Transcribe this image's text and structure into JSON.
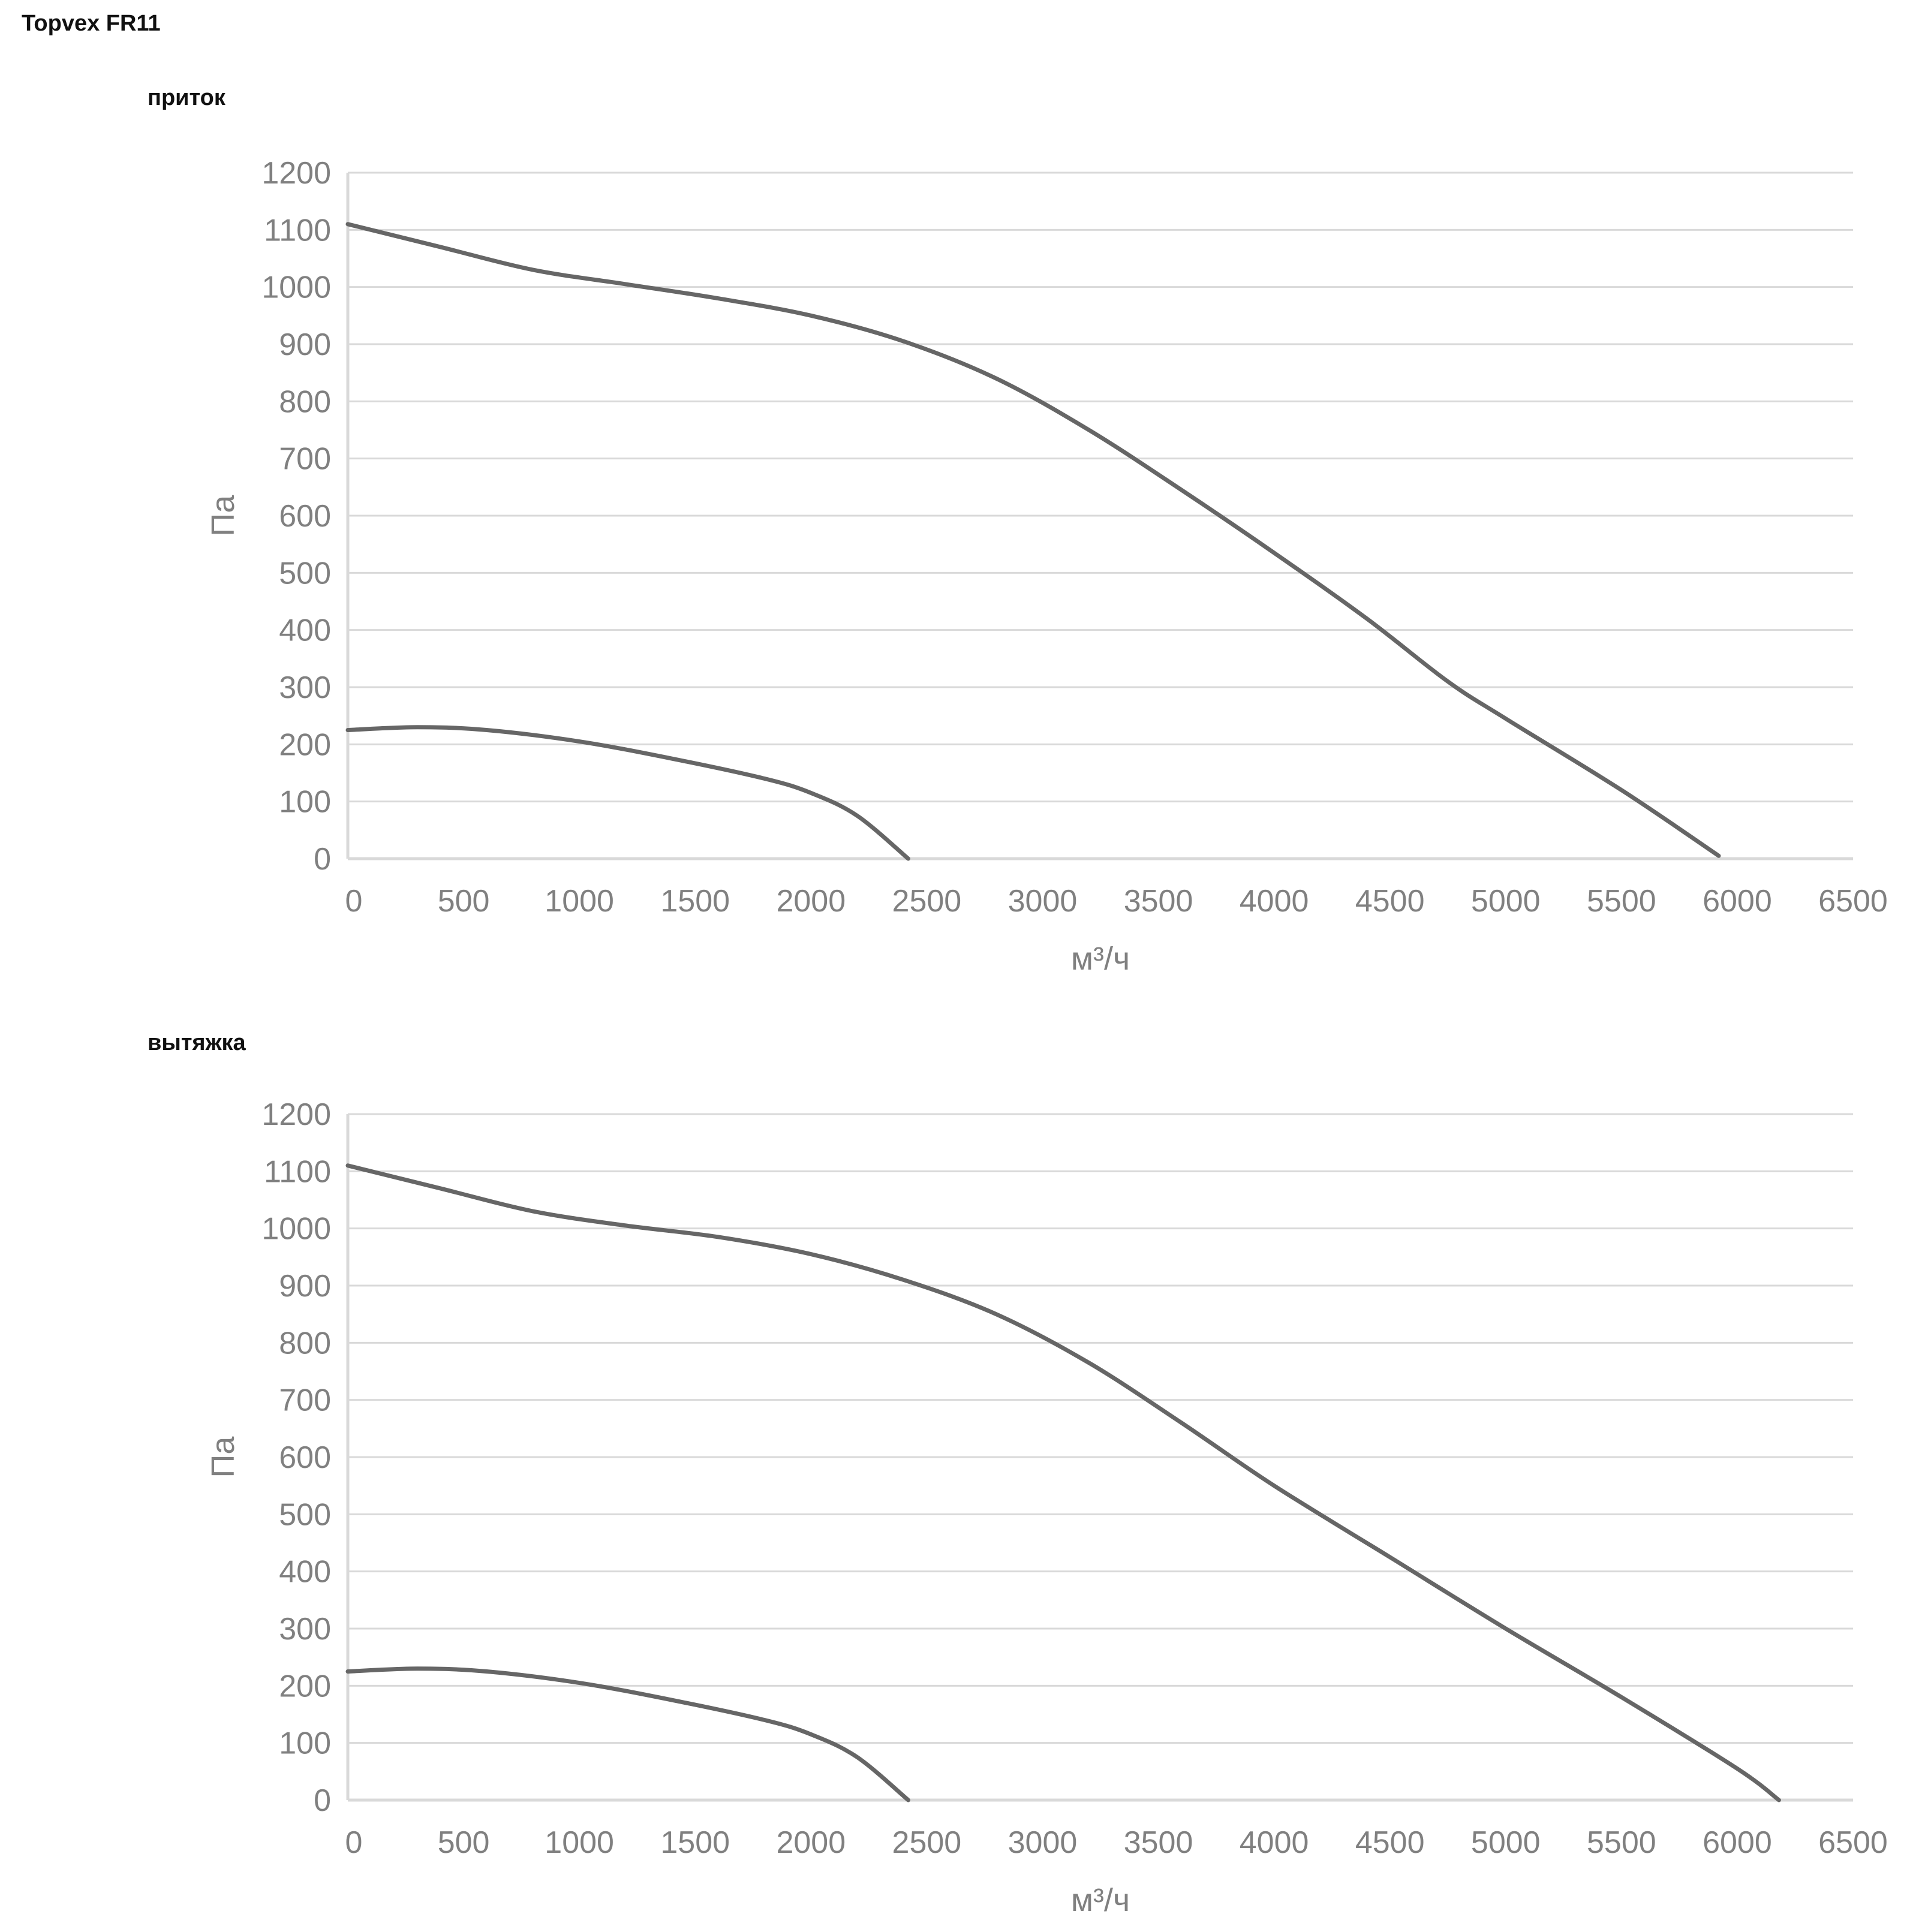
{
  "document_title": "Topvex FR11",
  "sections": [
    {
      "title": "приток"
    },
    {
      "title": "вытяжка"
    }
  ],
  "chart_data": [
    {
      "type": "line",
      "title": "",
      "xlabel": "м³/ч",
      "ylabel": "Па",
      "xlim": [
        0,
        6500
      ],
      "ylim": [
        0,
        1200
      ],
      "x_ticks": [
        "0",
        "500",
        "1000",
        "1500",
        "2000",
        "2500",
        "3000",
        "3500",
        "4000",
        "4500",
        "5000",
        "5500",
        "6000",
        "6500"
      ],
      "y_ticks": [
        "0",
        "100",
        "200",
        "300",
        "400",
        "500",
        "600",
        "700",
        "800",
        "900",
        "1000",
        "1100",
        "1200"
      ],
      "grid": true,
      "legend": "none",
      "series": [
        {
          "x": [
            0,
            400,
            800,
            1200,
            1600,
            2000,
            2400,
            2800,
            3200,
            3600,
            4000,
            4400,
            4750,
            5000,
            5500,
            5920
          ],
          "y": [
            1110,
            1070,
            1030,
            1005,
            980,
            950,
            905,
            840,
            750,
            645,
            535,
            420,
            310,
            245,
            120,
            5
          ],
          "color": "#666666"
        },
        {
          "x": [
            0,
            300,
            600,
            1000,
            1400,
            1800,
            2000,
            2200,
            2420
          ],
          "y": [
            225,
            230,
            225,
            205,
            175,
            140,
            115,
            75,
            0
          ],
          "color": "#666666"
        }
      ]
    },
    {
      "type": "line",
      "title": "",
      "xlabel": "м³/ч",
      "ylabel": "Па",
      "xlim": [
        0,
        6500
      ],
      "ylim": [
        0,
        1200
      ],
      "x_ticks": [
        "0",
        "500",
        "1000",
        "1500",
        "2000",
        "2500",
        "3000",
        "3500",
        "4000",
        "4500",
        "5000",
        "5500",
        "6000",
        "6500"
      ],
      "y_ticks": [
        "0",
        "100",
        "200",
        "300",
        "400",
        "500",
        "600",
        "700",
        "800",
        "900",
        "1000",
        "1100",
        "1200"
      ],
      "grid": true,
      "legend": "none",
      "series": [
        {
          "x": [
            0,
            400,
            800,
            1200,
            1600,
            2000,
            2400,
            2800,
            3200,
            3600,
            4000,
            4500,
            5000,
            5500,
            6000,
            6180
          ],
          "y": [
            1110,
            1070,
            1030,
            1005,
            985,
            955,
            910,
            850,
            765,
            660,
            550,
            425,
            300,
            180,
            55,
            0
          ],
          "color": "#666666"
        },
        {
          "x": [
            0,
            300,
            600,
            1000,
            1400,
            1800,
            2000,
            2200,
            2420
          ],
          "y": [
            225,
            230,
            225,
            205,
            175,
            140,
            115,
            75,
            0
          ],
          "color": "#666666"
        }
      ]
    }
  ]
}
